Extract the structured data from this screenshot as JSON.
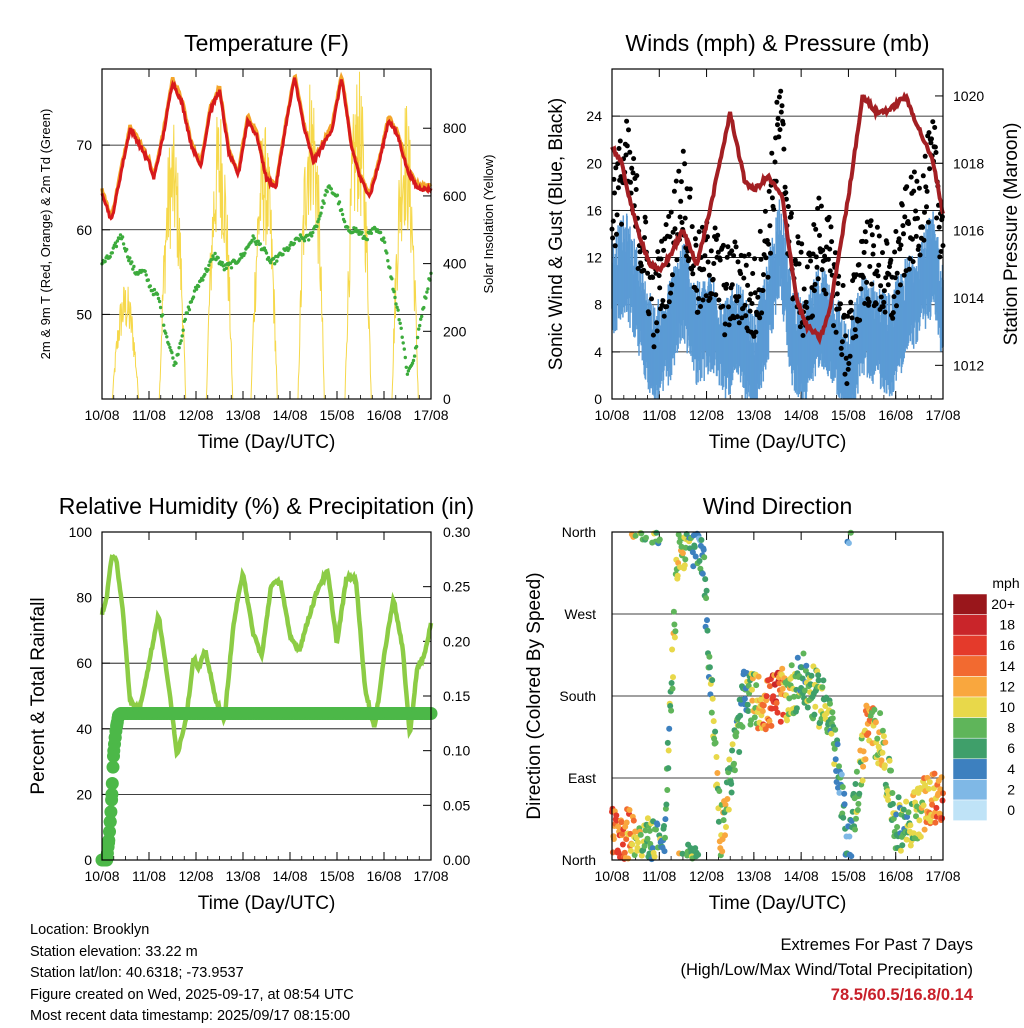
{
  "colors": {
    "temp_red": "#d7191c",
    "temp_orange": "#f4a52a",
    "dewpoint_green": "#3cab3c",
    "solar_yellow": "#f6d84a",
    "gust_black": "#000000",
    "wind_blue": "#5b9bd5",
    "pressure_maroon": "#a31f23",
    "rh_green": "#8ccc45",
    "precip_green": "#4cb848",
    "extremes_red": "#c8202a"
  },
  "time_ticks": [
    "10/08",
    "11/08",
    "12/08",
    "13/08",
    "14/08",
    "15/08",
    "16/08",
    "17/08"
  ],
  "x_label": "Time (Day/UTC)",
  "panels": {
    "temperature": {
      "title": "Temperature (F)",
      "ylabel": "2m & 9m T (Red, Orange) & 2m Td (Green)",
      "ylabel_right": "Solar Insolation (Yellow)"
    },
    "winds": {
      "title": "Winds (mph) & Pressure (mb)",
      "ylabel": "Sonic Wind & Gust (Blue, Black)",
      "ylabel_right": "Station Pressure (Maroon)"
    },
    "humidity": {
      "title": "Relative Humidity (%) & Precipitation (in)",
      "ylabel": "Percent & Total Rainfall"
    },
    "direction": {
      "title": "Wind Direction",
      "ylabel": "Direction (Colored By Speed)",
      "legend_unit": "mph",
      "legend_labels": [
        "20+",
        "18",
        "16",
        "14",
        "12",
        "10",
        "8",
        "6",
        "4",
        "2",
        "0"
      ],
      "legend_colors": [
        "#99161b",
        "#c9252a",
        "#e43a2b",
        "#f26a30",
        "#f9a73e",
        "#e8d84a",
        "#5fb55a",
        "#3f9f6a",
        "#3d80bf",
        "#7fb8e6",
        "#bfe3f7"
      ]
    }
  },
  "chart_data": [
    {
      "type": "line",
      "title": "Temperature (F)",
      "xlabel": "Time (Day/UTC)",
      "ylabel": "2m & 9m T (Red, Orange) & 2m Td (Green)",
      "ylabel_right": "Solar Insolation (Yellow)",
      "xlim": [
        0,
        7
      ],
      "ylim": [
        40,
        79
      ],
      "yticks": [
        50,
        60,
        70
      ],
      "ylim_right": [
        0,
        975
      ],
      "yticks_right": [
        0,
        200,
        400,
        600,
        800
      ],
      "x_unit": "days since 10/08 00 UTC",
      "grid": "horizontal",
      "series": [
        {
          "name": "2m T",
          "axis": "left",
          "x": [
            0,
            0.2,
            0.45,
            0.6,
            0.8,
            1.0,
            1.1,
            1.3,
            1.5,
            1.7,
            1.9,
            2.1,
            2.3,
            2.5,
            2.7,
            2.9,
            3.1,
            3.3,
            3.5,
            3.7,
            3.9,
            4.1,
            4.3,
            4.5,
            4.7,
            4.9,
            5.1,
            5.3,
            5.5,
            5.7,
            5.9,
            6.1,
            6.3,
            6.5,
            6.7,
            6.9,
            7.0
          ],
          "values": [
            64.5,
            61,
            68,
            72,
            70,
            68,
            66,
            71,
            77.5,
            75,
            70,
            67.5,
            74,
            76.5,
            69,
            66.5,
            73,
            71,
            66,
            65,
            72,
            78,
            72,
            68,
            70,
            72,
            78,
            70,
            66,
            64,
            68,
            73,
            71,
            67,
            65,
            64.8,
            64.8
          ]
        },
        {
          "name": "9m T",
          "axis": "left",
          "x": [
            0,
            0.2,
            0.45,
            0.6,
            0.8,
            1.0,
            1.1,
            1.3,
            1.5,
            1.7,
            1.9,
            2.1,
            2.3,
            2.5,
            2.7,
            2.9,
            3.1,
            3.3,
            3.5,
            3.7,
            3.9,
            4.1,
            4.3,
            4.5,
            4.7,
            4.9,
            5.1,
            5.3,
            5.5,
            5.7,
            5.9,
            6.1,
            6.3,
            6.5,
            6.7,
            6.9,
            7.0
          ],
          "values": [
            64.8,
            61.3,
            68.4,
            72.4,
            70.4,
            68.3,
            66.3,
            71.4,
            77.9,
            75.4,
            70.3,
            67.8,
            74.4,
            76.9,
            69.3,
            66.8,
            73.4,
            71.3,
            66.3,
            65.3,
            72.3,
            78.3,
            72.4,
            68.3,
            70.3,
            72.4,
            78.4,
            70.3,
            66.3,
            64.3,
            68.3,
            73.4,
            71.4,
            67.3,
            65.3,
            65.1,
            65.1
          ]
        },
        {
          "name": "2m Td",
          "axis": "left",
          "x": [
            0,
            0.2,
            0.4,
            0.55,
            0.7,
            0.9,
            1.05,
            1.2,
            1.35,
            1.55,
            1.8,
            2.0,
            2.2,
            2.4,
            2.6,
            2.8,
            3.0,
            3.2,
            3.4,
            3.6,
            3.8,
            4.0,
            4.2,
            4.4,
            4.6,
            4.8,
            5.0,
            5.2,
            5.4,
            5.6,
            5.8,
            6.0,
            6.2,
            6.35,
            6.5,
            6.65,
            6.8,
            7.0
          ],
          "values": [
            56,
            57,
            59.5,
            57,
            55,
            55,
            53,
            52,
            48,
            44,
            50,
            53,
            55,
            57,
            55.5,
            56,
            57,
            59,
            58,
            56,
            57,
            58,
            59,
            59,
            61,
            65,
            64,
            60,
            60,
            59,
            60,
            59,
            53,
            49,
            43,
            45,
            50,
            55
          ]
        },
        {
          "name": "Solar Insolation",
          "axis": "right",
          "peaks_x": [
            0.5,
            1.5,
            2.5,
            3.45,
            4.45,
            5.45,
            6.45
          ],
          "peak_values": [
            350,
            820,
            880,
            820,
            980,
            980,
            900
          ]
        }
      ]
    },
    {
      "type": "scatter",
      "title": "Winds (mph) & Pressure (mb)",
      "xlabel": "Time (Day/UTC)",
      "ylabel": "Sonic Wind & Gust (Blue, Black)",
      "ylabel_right": "Station Pressure (Maroon)",
      "xlim": [
        0,
        7
      ],
      "ylim": [
        0,
        28
      ],
      "yticks": [
        0,
        4,
        8,
        12,
        16,
        20,
        24
      ],
      "ylim_right": [
        1011,
        1020.8
      ],
      "yticks_right": [
        1012,
        1014,
        1016,
        1018,
        1020
      ],
      "x_unit": "days since 10/08 00 UTC",
      "grid": "horizontal",
      "series": [
        {
          "name": "Gust",
          "axis": "left",
          "x": [
            0,
            0.3,
            0.6,
            0.9,
            1.2,
            1.5,
            1.8,
            2.1,
            2.4,
            2.7,
            3.0,
            3.3,
            3.55,
            3.8,
            4.1,
            4.4,
            4.7,
            5.0,
            5.3,
            5.6,
            5.9,
            6.2,
            6.5,
            6.8,
            7.0
          ],
          "values": [
            16,
            20,
            14,
            8,
            12,
            18,
            10,
            12,
            9,
            10,
            8,
            14,
            24,
            12,
            8,
            14,
            10,
            4,
            12,
            11,
            9,
            14,
            16,
            20,
            14
          ]
        },
        {
          "name": "Sonic Wind",
          "axis": "left",
          "x": [
            0,
            0.3,
            0.6,
            0.9,
            1.2,
            1.5,
            1.8,
            2.1,
            2.4,
            2.7,
            3.0,
            3.3,
            3.55,
            3.8,
            4.1,
            4.4,
            4.7,
            5.0,
            5.3,
            5.6,
            5.9,
            6.2,
            6.5,
            6.8,
            7.0
          ],
          "values": [
            10,
            12,
            8,
            4,
            6,
            10,
            6,
            7,
            5,
            6,
            3,
            8,
            14,
            6,
            4,
            8,
            6,
            2,
            7,
            6,
            5,
            8,
            10,
            12,
            8
          ]
        },
        {
          "name": "Station Pressure",
          "axis": "right",
          "x": [
            0,
            0.2,
            0.5,
            0.8,
            1.0,
            1.2,
            1.5,
            1.8,
            2.1,
            2.5,
            2.8,
            3.0,
            3.3,
            3.6,
            3.9,
            4.1,
            4.4,
            4.6,
            5.0,
            5.3,
            5.6,
            5.9,
            6.2,
            6.5,
            6.8,
            7.0
          ],
          "values": [
            1018.5,
            1018,
            1016.2,
            1015,
            1014.8,
            1015.2,
            1016,
            1015,
            1016.8,
            1019.5,
            1017.5,
            1017.2,
            1017.6,
            1017,
            1014,
            1013.2,
            1012.8,
            1013.6,
            1017,
            1020,
            1019.5,
            1019.6,
            1020,
            1019,
            1018,
            1016.5
          ]
        }
      ]
    },
    {
      "type": "line",
      "title": "Relative Humidity (%) & Precipitation (in)",
      "xlabel": "Time (Day/UTC)",
      "ylabel": "Percent & Total Rainfall",
      "xlim": [
        0,
        7
      ],
      "ylim": [
        0,
        100
      ],
      "yticks": [
        0,
        20,
        40,
        60,
        80,
        100
      ],
      "ylim_right": [
        0,
        0.3
      ],
      "yticks_right": [
        "0.00",
        "0.05",
        "0.10",
        "0.15",
        "0.20",
        "0.25",
        "0.30"
      ],
      "x_unit": "days since 10/08 00 UTC",
      "grid": "horizontal",
      "series": [
        {
          "name": "Relative Humidity",
          "axis": "left",
          "x": [
            0,
            0.1,
            0.2,
            0.3,
            0.45,
            0.6,
            0.8,
            1.0,
            1.2,
            1.4,
            1.6,
            1.8,
            1.95,
            2.05,
            2.2,
            2.4,
            2.6,
            2.8,
            3.0,
            3.2,
            3.4,
            3.6,
            3.8,
            4.0,
            4.2,
            4.4,
            4.6,
            4.8,
            5.0,
            5.2,
            5.4,
            5.6,
            5.8,
            6.0,
            6.2,
            6.4,
            6.55,
            6.7,
            6.85,
            7.0
          ],
          "values": [
            75,
            80,
            92,
            92,
            75,
            48,
            46,
            60,
            75,
            55,
            32,
            44,
            62,
            58,
            64,
            50,
            42,
            72,
            88,
            70,
            62,
            84,
            85,
            68,
            64,
            74,
            83,
            88,
            66,
            86,
            86,
            52,
            40,
            62,
            80,
            64,
            38,
            58,
            62,
            72
          ]
        },
        {
          "name": "Total Rainfall",
          "axis": "right",
          "x": [
            0,
            0.1,
            0.15,
            0.2,
            0.25,
            0.3,
            0.35,
            0.4,
            7.0
          ],
          "values": [
            0,
            0,
            0.02,
            0.05,
            0.1,
            0.12,
            0.132,
            0.134,
            0.134
          ]
        }
      ]
    },
    {
      "type": "scatter",
      "title": "Wind Direction",
      "xlabel": "Time (Day/UTC)",
      "ylabel": "Direction (Colored By Speed)",
      "xlim": [
        0,
        7
      ],
      "ylim": [
        0,
        360
      ],
      "yticks": [
        "North",
        "East",
        "South",
        "West",
        "North"
      ],
      "x_unit": "days since 10/08 00 UTC",
      "grid": "horizontal",
      "legend": "right",
      "series": [
        {
          "name": "Direction",
          "x": [
            0.2,
            0.4,
            0.7,
            1.1,
            1.4,
            1.6,
            1.9,
            2.3,
            2.8,
            3.3,
            3.5,
            3.7,
            4.0,
            4.3,
            4.6,
            5.0,
            5.4,
            5.7,
            6.0,
            6.3,
            6.6,
            6.9
          ],
          "values": [
            30,
            25,
            20,
            15,
            345,
            350,
            345,
            30,
            180,
            170,
            180,
            180,
            200,
            180,
            165,
            10,
            150,
            130,
            40,
            40,
            60,
            70
          ],
          "speeds": [
            14,
            12,
            8,
            6,
            10,
            8,
            4,
            10,
            6,
            14,
            16,
            10,
            6,
            8,
            8,
            4,
            12,
            10,
            6,
            8,
            12,
            14
          ]
        }
      ]
    }
  ],
  "info": {
    "location": "Location: Brooklyn",
    "elevation": "Station elevation: 33.22 m",
    "latlon": "Station lat/lon: 40.6318; -73.9537",
    "created": "Figure created on Wed, 2025-09-17, at 08:54 UTC",
    "recent": "Most recent data timestamp: 2025/09/17 08:15:00"
  },
  "extremes": {
    "title": "Extremes For Past 7 Days",
    "subtitle": "(High/Low/Max Wind/Total Precipitation)",
    "values": "78.5/60.5/16.8/0.14"
  }
}
